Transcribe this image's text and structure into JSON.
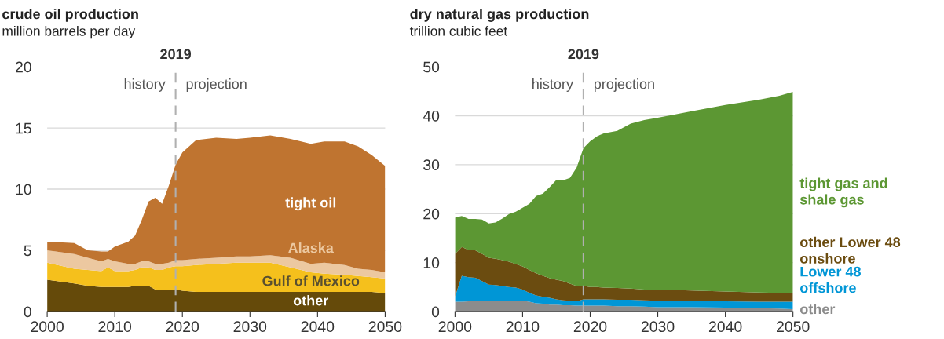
{
  "chart_data": [
    {
      "type": "area",
      "stacked": true,
      "title": "crude oil production",
      "subtitle": "million barrels per day",
      "x": [
        2000,
        2004,
        2006,
        2008,
        2009,
        2010,
        2012,
        2013,
        2014,
        2015,
        2016,
        2017,
        2018,
        2019,
        2020,
        2022,
        2025,
        2028,
        2030,
        2033,
        2036,
        2039,
        2041,
        2044,
        2046,
        2048,
        2050
      ],
      "series": [
        {
          "name": "other",
          "color": "#654a0a",
          "values": [
            2.6,
            2.3,
            2.1,
            2.0,
            2.0,
            2.0,
            2.0,
            2.1,
            2.1,
            2.1,
            1.8,
            1.8,
            1.8,
            1.8,
            1.7,
            1.6,
            1.6,
            1.6,
            1.6,
            1.6,
            1.6,
            1.6,
            1.6,
            1.6,
            1.6,
            1.6,
            1.5
          ]
        },
        {
          "name": "Gulf of Mexico",
          "color": "#f5c01c",
          "values": [
            1.4,
            1.2,
            1.3,
            1.3,
            1.6,
            1.3,
            1.3,
            1.3,
            1.5,
            1.5,
            1.6,
            1.6,
            1.8,
            1.9,
            2.0,
            2.2,
            2.3,
            2.4,
            2.4,
            2.4,
            2.0,
            1.6,
            1.5,
            1.4,
            1.3,
            1.2,
            1.2
          ]
        },
        {
          "name": "Alaska",
          "color": "#ecc8a0",
          "values": [
            1.0,
            1.2,
            1.0,
            0.8,
            0.7,
            0.8,
            0.6,
            0.5,
            0.5,
            0.5,
            0.5,
            0.5,
            0.4,
            0.5,
            0.5,
            0.5,
            0.5,
            0.5,
            0.5,
            0.6,
            0.8,
            0.7,
            0.9,
            0.8,
            0.6,
            0.6,
            0.5
          ]
        },
        {
          "name": "tight oil",
          "color": "#bf7430",
          "values": [
            0.7,
            0.9,
            0.6,
            0.8,
            0.6,
            1.2,
            1.8,
            2.3,
            3.4,
            4.9,
            5.4,
            4.9,
            6.3,
            7.8,
            8.8,
            9.7,
            9.8,
            9.6,
            9.7,
            9.8,
            9.7,
            9.8,
            9.9,
            10.1,
            10.0,
            9.4,
            8.7
          ]
        }
      ],
      "xlim": [
        2000,
        2050
      ],
      "xticks": [
        2000,
        2010,
        2020,
        2030,
        2040,
        2050
      ],
      "ylim": [
        0,
        20
      ],
      "yticks": [
        0,
        5,
        10,
        15,
        20
      ],
      "grid": "y",
      "ref_lines": [
        {
          "axis": "x",
          "value": 2019,
          "label": "2019",
          "color": "#b0b0b0",
          "line_style": "dashed"
        }
      ],
      "annotations": [
        "history",
        "projection"
      ]
    },
    {
      "type": "area",
      "stacked": true,
      "title": "dry natural gas production",
      "subtitle": "trillion cubic feet",
      "legend": "right",
      "x": [
        2000,
        2001,
        2002,
        2003,
        2004,
        2005,
        2006,
        2007,
        2008,
        2009,
        2010,
        2011,
        2012,
        2013,
        2014,
        2015,
        2016,
        2017,
        2018,
        2019,
        2020,
        2021,
        2022,
        2024,
        2026,
        2028,
        2030,
        2032,
        2035,
        2040,
        2045,
        2048,
        2050
      ],
      "series": [
        {
          "name": "other",
          "color": "#8c8c8c",
          "values": [
            2.0,
            2.0,
            2.1,
            2.1,
            2.2,
            2.2,
            2.2,
            2.2,
            2.2,
            2.2,
            2.2,
            2.0,
            1.7,
            1.6,
            1.4,
            1.4,
            1.3,
            1.3,
            1.2,
            1.2,
            1.2,
            1.2,
            1.2,
            1.1,
            1.1,
            1.0,
            0.9,
            0.9,
            0.9,
            0.8,
            0.7,
            0.6,
            0.5
          ]
        },
        {
          "name": "Lower 48\noffshore",
          "color": "#0096d6",
          "values": [
            1.0,
            5.3,
            4.9,
            4.8,
            4.0,
            3.3,
            3.2,
            3.0,
            2.8,
            2.7,
            2.3,
            1.8,
            1.6,
            1.4,
            1.4,
            1.1,
            1.0,
            0.9,
            0.9,
            1.3,
            1.3,
            1.3,
            1.3,
            1.3,
            1.3,
            1.3,
            1.3,
            1.3,
            1.2,
            1.3,
            1.3,
            1.4,
            1.5
          ]
        },
        {
          "name": "other Lower 48\nonshore",
          "color": "#6b4c10",
          "values": [
            8.8,
            5.9,
            5.6,
            5.6,
            5.6,
            5.5,
            5.4,
            5.3,
            5.2,
            4.8,
            4.7,
            4.7,
            4.5,
            4.3,
            4.0,
            4.0,
            3.9,
            3.5,
            3.1,
            2.7,
            2.5,
            2.5,
            2.4,
            2.4,
            2.3,
            2.2,
            2.2,
            2.2,
            2.2,
            2.0,
            1.9,
            1.8,
            1.7
          ]
        },
        {
          "name": "tight gas and\nshale gas",
          "color": "#5c9733",
          "values": [
            7.4,
            6.3,
            6.3,
            6.4,
            7.0,
            7.0,
            7.4,
            8.5,
            9.7,
            10.7,
            12.0,
            13.5,
            15.8,
            16.8,
            18.6,
            20.4,
            20.6,
            21.6,
            24.2,
            28.2,
            29.8,
            30.8,
            31.5,
            32.1,
            33.7,
            34.6,
            35.2,
            35.7,
            36.6,
            38.1,
            39.4,
            40.3,
            41.2
          ]
        }
      ],
      "xlim": [
        2000,
        2050
      ],
      "xticks": [
        2000,
        2010,
        2020,
        2030,
        2040,
        2050
      ],
      "ylim": [
        0,
        50
      ],
      "yticks": [
        0,
        10,
        20,
        30,
        40,
        50
      ],
      "grid": "y",
      "ref_lines": [
        {
          "axis": "x",
          "value": 2019,
          "label": "2019",
          "color": "#b0b0b0",
          "line_style": "dashed"
        }
      ],
      "annotations": [
        "history",
        "projection"
      ]
    }
  ]
}
